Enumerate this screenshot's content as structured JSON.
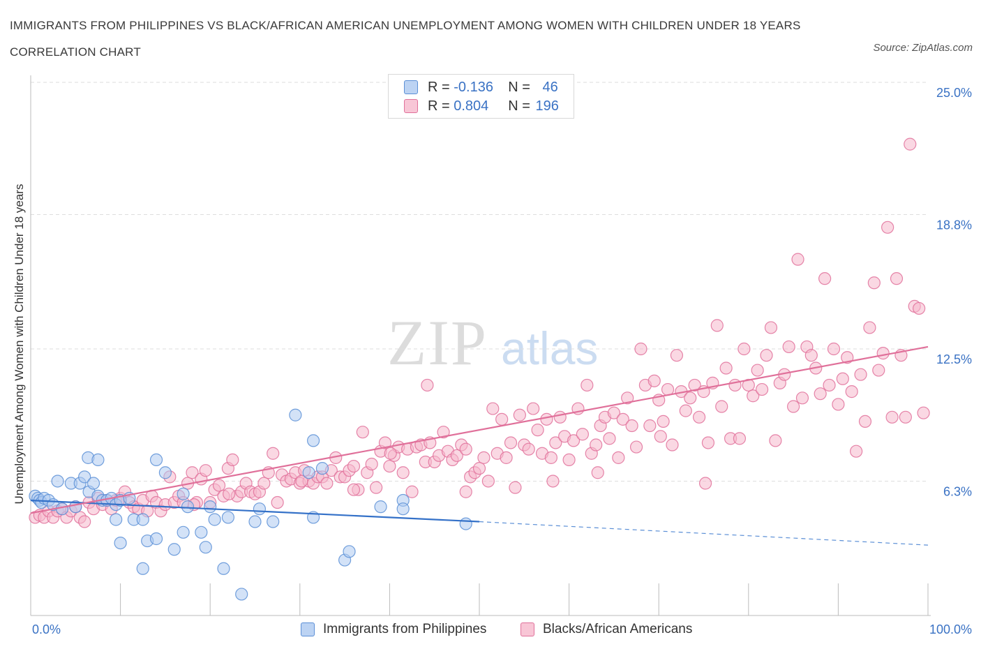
{
  "title": "IMMIGRANTS FROM PHILIPPINES VS BLACK/AFRICAN AMERICAN UNEMPLOYMENT AMONG WOMEN WITH CHILDREN UNDER 18 YEARS CORRELATION CHART",
  "source": "Source: ZipAtlas.com",
  "watermark": {
    "zip": "ZIP",
    "atlas": "atlas"
  },
  "colors": {
    "blue": "#5b8fd6",
    "blue_fill": "#aecbf0",
    "pink": "#e0709a",
    "pink_fill": "#f5b8cc",
    "axis_text": "#3a72c4"
  },
  "legend_top": [
    {
      "r_label": "R = ",
      "r_value": "-0.136",
      "n_label": "N = ",
      "n_value": "46"
    },
    {
      "r_label": "R = ",
      "r_value": "0.804",
      "n_label": "N = ",
      "n_value": "196"
    }
  ],
  "legend_bottom": [
    "Immigrants from Philippines",
    "Blacks/African Americans"
  ],
  "chart_data": {
    "type": "scatter",
    "title": "IMMIGRANTS FROM PHILIPPINES VS BLACK/AFRICAN AMERICAN UNEMPLOYMENT AMONG WOMEN WITH CHILDREN UNDER 18 YEARS CORRELATION CHART",
    "xlabel": "",
    "ylabel": "Unemployment Among Women with Children Under 18 years",
    "xlim": [
      0,
      100
    ],
    "ylim": [
      0,
      25
    ],
    "x_tick_labels": [
      "0.0%",
      "100.0%"
    ],
    "y_ticks": [
      {
        "value": 6.3,
        "label": "6.3%"
      },
      {
        "value": 12.5,
        "label": "12.5%"
      },
      {
        "value": 18.8,
        "label": "18.8%"
      },
      {
        "value": 25.0,
        "label": "25.0%"
      }
    ],
    "grid": true,
    "legend_position": "top-center",
    "series": [
      {
        "name": "Immigrants from Philippines",
        "color": "#5b8fd6",
        "trend": {
          "x0": 0,
          "y0": 5.4,
          "x1": 50,
          "y1": 4.4,
          "dashed_to": 100,
          "y_dashed_end": 3.3
        },
        "points": [
          [
            0.5,
            5.6
          ],
          [
            0.8,
            5.5
          ],
          [
            1.0,
            5.4
          ],
          [
            1.2,
            5.3
          ],
          [
            1.5,
            5.5
          ],
          [
            2.0,
            5.4
          ],
          [
            2.5,
            5.2
          ],
          [
            3.5,
            5.0
          ],
          [
            3.0,
            6.3
          ],
          [
            4.5,
            6.2
          ],
          [
            5.5,
            6.2
          ],
          [
            5.0,
            5.1
          ],
          [
            6.0,
            6.5
          ],
          [
            6.5,
            5.8
          ],
          [
            7.0,
            6.2
          ],
          [
            7.5,
            5.6
          ],
          [
            8.0,
            5.4
          ],
          [
            8.5,
            5.4
          ],
          [
            9.0,
            5.5
          ],
          [
            9.5,
            5.2
          ],
          [
            10.0,
            5.4
          ],
          [
            11.0,
            5.5
          ],
          [
            6.4,
            7.4
          ],
          [
            7.5,
            7.3
          ],
          [
            11.5,
            4.5
          ],
          [
            12.5,
            4.5
          ],
          [
            9.5,
            4.5
          ],
          [
            13.0,
            3.5
          ],
          [
            10.0,
            3.4
          ],
          [
            14.0,
            3.6
          ],
          [
            16.0,
            3.1
          ],
          [
            12.5,
            2.2
          ],
          [
            17.0,
            3.9
          ],
          [
            19.0,
            3.9
          ],
          [
            19.5,
            3.2
          ],
          [
            21.5,
            2.2
          ],
          [
            17.5,
            5.1
          ],
          [
            14.0,
            7.3
          ],
          [
            15.0,
            6.7
          ],
          [
            17.0,
            5.7
          ],
          [
            20.0,
            5.1
          ],
          [
            20.5,
            4.5
          ],
          [
            22.0,
            4.6
          ],
          [
            25.0,
            4.4
          ],
          [
            25.5,
            5.0
          ],
          [
            27.0,
            4.4
          ],
          [
            23.5,
            1.0
          ],
          [
            29.5,
            9.4
          ],
          [
            31.5,
            8.2
          ],
          [
            31.0,
            6.7
          ],
          [
            32.5,
            6.9
          ],
          [
            31.5,
            4.6
          ],
          [
            35.0,
            2.6
          ],
          [
            35.5,
            3.0
          ],
          [
            39.0,
            5.1
          ],
          [
            41.5,
            5.4
          ],
          [
            41.5,
            5.0
          ],
          [
            48.5,
            4.3
          ]
        ]
      },
      {
        "name": "Blacks/African Americans",
        "color": "#e0709a",
        "trend": {
          "x0": 0,
          "y0": 4.8,
          "x1": 100,
          "y1": 12.6
        },
        "points": [
          [
            0.5,
            4.6
          ],
          [
            1.0,
            4.7
          ],
          [
            1.5,
            4.6
          ],
          [
            2.0,
            4.9
          ],
          [
            2.5,
            4.6
          ],
          [
            3.0,
            4.9
          ],
          [
            3.5,
            5.0
          ],
          [
            4.0,
            4.6
          ],
          [
            4.5,
            4.9
          ],
          [
            5.0,
            5.1
          ],
          [
            5.5,
            4.6
          ],
          [
            6.0,
            4.4
          ],
          [
            6.5,
            5.3
          ],
          [
            7.0,
            5.0
          ],
          [
            7.5,
            5.5
          ],
          [
            8.0,
            5.2
          ],
          [
            8.5,
            5.4
          ],
          [
            9.0,
            5.0
          ],
          [
            9.5,
            5.4
          ],
          [
            10.0,
            5.5
          ],
          [
            10.5,
            5.8
          ],
          [
            11.0,
            5.3
          ],
          [
            11.5,
            5.1
          ],
          [
            12.0,
            5.0
          ],
          [
            12.5,
            5.4
          ],
          [
            13.0,
            4.9
          ],
          [
            13.5,
            5.6
          ],
          [
            14.0,
            5.3
          ],
          [
            14.5,
            4.9
          ],
          [
            15.0,
            5.2
          ],
          [
            15.5,
            6.5
          ],
          [
            16.0,
            5.3
          ],
          [
            16.5,
            5.6
          ],
          [
            17.0,
            5.3
          ],
          [
            17.5,
            6.2
          ],
          [
            18.0,
            6.7
          ],
          [
            18.5,
            5.3
          ],
          [
            19.0,
            6.4
          ],
          [
            19.5,
            6.8
          ],
          [
            20.0,
            5.3
          ],
          [
            20.5,
            5.9
          ],
          [
            21.0,
            6.1
          ],
          [
            21.5,
            5.6
          ],
          [
            22.0,
            6.9
          ],
          [
            22.5,
            7.3
          ],
          [
            23.0,
            5.6
          ],
          [
            23.5,
            5.8
          ],
          [
            24.0,
            6.2
          ],
          [
            24.5,
            5.8
          ],
          [
            25.0,
            5.7
          ],
          [
            25.5,
            5.8
          ],
          [
            26.0,
            6.2
          ],
          [
            26.5,
            6.7
          ],
          [
            27.0,
            7.6
          ],
          [
            27.5,
            5.3
          ],
          [
            28.0,
            6.6
          ],
          [
            28.5,
            6.3
          ],
          [
            29.0,
            6.4
          ],
          [
            29.5,
            6.7
          ],
          [
            30.0,
            6.2
          ],
          [
            30.5,
            6.8
          ],
          [
            31.0,
            6.3
          ],
          [
            31.5,
            6.2
          ],
          [
            32.0,
            6.5
          ],
          [
            32.5,
            6.5
          ],
          [
            33.0,
            6.2
          ],
          [
            33.5,
            6.8
          ],
          [
            34.0,
            7.4
          ],
          [
            34.5,
            6.5
          ],
          [
            35.0,
            6.5
          ],
          [
            35.5,
            6.8
          ],
          [
            36.0,
            7.0
          ],
          [
            36.5,
            5.9
          ],
          [
            37.0,
            8.6
          ],
          [
            37.5,
            6.7
          ],
          [
            38.0,
            7.1
          ],
          [
            38.5,
            6.0
          ],
          [
            39.0,
            7.7
          ],
          [
            39.5,
            8.1
          ],
          [
            40.0,
            7.0
          ],
          [
            40.5,
            7.5
          ],
          [
            41.0,
            7.9
          ],
          [
            41.5,
            6.7
          ],
          [
            42.0,
            7.8
          ],
          [
            42.5,
            5.8
          ],
          [
            43.0,
            7.9
          ],
          [
            43.5,
            8.0
          ],
          [
            44.0,
            7.2
          ],
          [
            44.5,
            8.1
          ],
          [
            45.0,
            7.2
          ],
          [
            45.5,
            7.5
          ],
          [
            46.0,
            8.6
          ],
          [
            46.5,
            7.7
          ],
          [
            47.0,
            7.3
          ],
          [
            47.5,
            7.5
          ],
          [
            48.0,
            8.0
          ],
          [
            48.5,
            7.8
          ],
          [
            49.0,
            6.5
          ],
          [
            49.5,
            6.7
          ],
          [
            50.0,
            6.9
          ],
          [
            50.5,
            7.4
          ],
          [
            51.0,
            6.3
          ],
          [
            51.5,
            9.7
          ],
          [
            52.0,
            7.6
          ],
          [
            52.5,
            9.2
          ],
          [
            53.0,
            7.4
          ],
          [
            53.5,
            8.1
          ],
          [
            54.0,
            6.0
          ],
          [
            54.5,
            9.4
          ],
          [
            55.0,
            8.0
          ],
          [
            55.5,
            7.8
          ],
          [
            56.0,
            9.7
          ],
          [
            56.5,
            8.7
          ],
          [
            57.0,
            7.6
          ],
          [
            57.5,
            9.2
          ],
          [
            58.0,
            7.4
          ],
          [
            58.5,
            8.1
          ],
          [
            59.0,
            9.3
          ],
          [
            59.5,
            8.4
          ],
          [
            60.0,
            7.3
          ],
          [
            60.5,
            8.2
          ],
          [
            61.0,
            9.7
          ],
          [
            61.5,
            8.5
          ],
          [
            62.0,
            10.8
          ],
          [
            62.5,
            7.6
          ],
          [
            63.0,
            8.0
          ],
          [
            63.5,
            8.9
          ],
          [
            64.0,
            9.3
          ],
          [
            64.5,
            8.3
          ],
          [
            65.0,
            9.5
          ],
          [
            65.5,
            7.4
          ],
          [
            66.0,
            9.2
          ],
          [
            66.5,
            10.2
          ],
          [
            67.0,
            8.9
          ],
          [
            67.5,
            7.9
          ],
          [
            68.0,
            12.5
          ],
          [
            68.5,
            10.8
          ],
          [
            69.0,
            8.9
          ],
          [
            69.5,
            11.0
          ],
          [
            70.0,
            10.1
          ],
          [
            70.5,
            9.1
          ],
          [
            71.0,
            10.6
          ],
          [
            71.5,
            8.0
          ],
          [
            72.0,
            12.2
          ],
          [
            72.5,
            10.5
          ],
          [
            73.0,
            9.6
          ],
          [
            73.5,
            10.2
          ],
          [
            74.0,
            10.8
          ],
          [
            74.5,
            9.3
          ],
          [
            75.0,
            10.5
          ],
          [
            75.5,
            8.1
          ],
          [
            76.0,
            10.9
          ],
          [
            76.5,
            13.6
          ],
          [
            77.0,
            9.8
          ],
          [
            77.5,
            11.6
          ],
          [
            78.0,
            8.3
          ],
          [
            78.5,
            10.8
          ],
          [
            79.0,
            8.3
          ],
          [
            79.5,
            12.5
          ],
          [
            80.0,
            10.8
          ],
          [
            80.5,
            10.3
          ],
          [
            81.0,
            11.5
          ],
          [
            81.5,
            10.6
          ],
          [
            82.0,
            12.2
          ],
          [
            82.5,
            13.5
          ],
          [
            83.0,
            8.2
          ],
          [
            83.5,
            10.9
          ],
          [
            84.0,
            11.3
          ],
          [
            84.5,
            12.6
          ],
          [
            85.0,
            9.8
          ],
          [
            85.5,
            16.7
          ],
          [
            86.0,
            10.2
          ],
          [
            86.5,
            12.6
          ],
          [
            87.0,
            12.2
          ],
          [
            87.5,
            11.6
          ],
          [
            88.0,
            10.4
          ],
          [
            88.5,
            15.8
          ],
          [
            89.0,
            10.8
          ],
          [
            89.5,
            12.5
          ],
          [
            90.0,
            9.9
          ],
          [
            90.5,
            11.1
          ],
          [
            91.0,
            12.1
          ],
          [
            91.5,
            10.5
          ],
          [
            92.0,
            7.7
          ],
          [
            92.5,
            11.3
          ],
          [
            93.0,
            9.1
          ],
          [
            93.5,
            13.5
          ],
          [
            94.0,
            15.6
          ],
          [
            94.5,
            11.5
          ],
          [
            95.0,
            12.3
          ],
          [
            95.5,
            18.2
          ],
          [
            96.0,
            9.3
          ],
          [
            96.5,
            15.8
          ],
          [
            97.0,
            12.2
          ],
          [
            97.5,
            9.3
          ],
          [
            98.0,
            22.1
          ],
          [
            98.5,
            14.5
          ],
          [
            99.0,
            14.4
          ],
          [
            99.5,
            9.5
          ],
          [
            75.2,
            6.2
          ],
          [
            70.2,
            8.4
          ],
          [
            63.2,
            6.7
          ],
          [
            58.2,
            6.3
          ],
          [
            48.5,
            5.8
          ],
          [
            44.2,
            10.8
          ],
          [
            40.1,
            7.6
          ],
          [
            36.0,
            5.9
          ],
          [
            30.2,
            6.3
          ],
          [
            22.1,
            5.7
          ],
          [
            18.2,
            5.2
          ]
        ]
      }
    ]
  }
}
